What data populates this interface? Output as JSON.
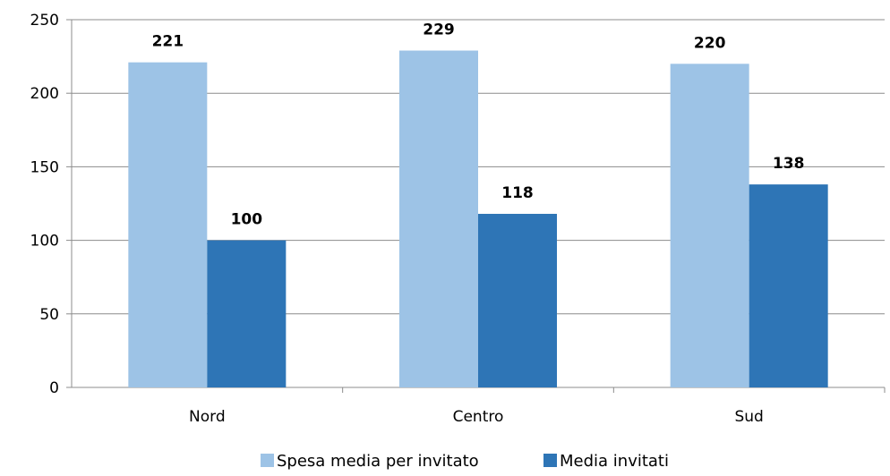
{
  "chart_data": {
    "type": "bar",
    "categories": [
      "Nord",
      "Centro",
      "Sud"
    ],
    "series": [
      {
        "name": "Spesa media per invitato",
        "values": [
          221,
          229,
          220
        ],
        "color": "#9DC3E6"
      },
      {
        "name": "Media invitati",
        "values": [
          100,
          118,
          138
        ],
        "color": "#2E75B6"
      }
    ],
    "y_ticks": [
      "0",
      "50",
      "100",
      "150",
      "200",
      "250"
    ],
    "ylim": [
      0,
      250
    ],
    "grid": true,
    "legend_position": "bottom"
  }
}
